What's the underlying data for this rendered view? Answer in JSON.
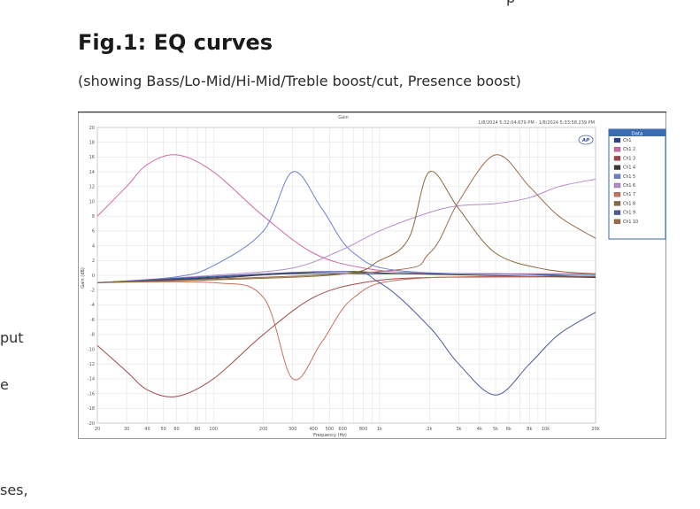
{
  "page": {
    "top_fragment": "p",
    "left_fragments": [
      "put",
      "e",
      "ses,"
    ],
    "figure_title": "Fig.1: EQ curves",
    "figure_caption": "(showing Bass/Lo-Mid/Hi-Mid/Treble boost/cut, Presence boost)"
  },
  "chart_data": {
    "type": "line",
    "title": "Gain",
    "timestamp": "1/8/2024 5:32:04.679 PM - 1/8/2024 5:33:58.239 PM",
    "logo": "AP",
    "xlabel": "Frequency (Hz)",
    "ylabel": "Gain (dB)",
    "xscale": "log",
    "xlim": [
      20,
      20000
    ],
    "ylim": [
      -20,
      20
    ],
    "grid": true,
    "legend_title": "Data",
    "legend_position": "top-right",
    "x_ticks": [
      {
        "v": 20,
        "l": "20"
      },
      {
        "v": 30,
        "l": "30"
      },
      {
        "v": 40,
        "l": "40"
      },
      {
        "v": 50,
        "l": "50"
      },
      {
        "v": 60,
        "l": "60"
      },
      {
        "v": 80,
        "l": "80"
      },
      {
        "v": 100,
        "l": "100"
      },
      {
        "v": 200,
        "l": "200"
      },
      {
        "v": 300,
        "l": "300"
      },
      {
        "v": 400,
        "l": "400"
      },
      {
        "v": 500,
        "l": "500"
      },
      {
        "v": 600,
        "l": "600"
      },
      {
        "v": 800,
        "l": "800"
      },
      {
        "v": 1000,
        "l": "1k"
      },
      {
        "v": 2000,
        "l": "2k"
      },
      {
        "v": 3000,
        "l": "3k"
      },
      {
        "v": 4000,
        "l": "4k"
      },
      {
        "v": 5000,
        "l": "5k"
      },
      {
        "v": 6000,
        "l": "6k"
      },
      {
        "v": 8000,
        "l": "8k"
      },
      {
        "v": 10000,
        "l": "10k"
      },
      {
        "v": 20000,
        "l": "20k"
      }
    ],
    "y_ticks": [
      20,
      18,
      16,
      14,
      12,
      10,
      8,
      6,
      4,
      2,
      0,
      -2,
      -4,
      -6,
      -8,
      -10,
      -12,
      -14,
      -16,
      -18,
      -20
    ],
    "series": [
      {
        "name": "Ch1",
        "color": "#2c3f8c",
        "points": [
          [
            20,
            -1.0
          ],
          [
            60,
            -0.5
          ],
          [
            300,
            0.2
          ],
          [
            1000,
            0.2
          ],
          [
            5000,
            0.2
          ],
          [
            20000,
            -0.2
          ]
        ]
      },
      {
        "name": "Ch1 2",
        "color": "#cc6aa8",
        "points": [
          [
            20,
            8
          ],
          [
            30,
            12
          ],
          [
            40,
            15
          ],
          [
            60,
            16.3
          ],
          [
            100,
            14
          ],
          [
            200,
            8
          ],
          [
            400,
            3
          ],
          [
            800,
            1
          ],
          [
            2000,
            0.3
          ],
          [
            20000,
            0.2
          ]
        ]
      },
      {
        "name": "Ch1 3",
        "color": "#a04848",
        "points": [
          [
            20,
            -9.5
          ],
          [
            30,
            -13
          ],
          [
            40,
            -15.5
          ],
          [
            60,
            -16.4
          ],
          [
            100,
            -14
          ],
          [
            200,
            -8
          ],
          [
            400,
            -3
          ],
          [
            800,
            -1
          ],
          [
            2000,
            -0.3
          ],
          [
            20000,
            -0.2
          ]
        ]
      },
      {
        "name": "Ch1 4",
        "color": "#3a3a3a",
        "points": [
          [
            20,
            -1
          ],
          [
            100,
            -0.4
          ],
          [
            300,
            0.3
          ],
          [
            700,
            0.5
          ],
          [
            1500,
            0.2
          ],
          [
            20000,
            -0.3
          ]
        ]
      },
      {
        "name": "Ch1 5",
        "color": "#6a7fd0",
        "points": [
          [
            20,
            -1
          ],
          [
            60,
            -0.2
          ],
          [
            100,
            1.3
          ],
          [
            200,
            6
          ],
          [
            300,
            14
          ],
          [
            450,
            9
          ],
          [
            700,
            3
          ],
          [
            1500,
            0.5
          ],
          [
            20000,
            0.1
          ]
        ]
      },
      {
        "name": "Ch1 6",
        "color": "#b58bc9",
        "points": [
          [
            20,
            -1
          ],
          [
            100,
            0
          ],
          [
            300,
            1
          ],
          [
            600,
            3.5
          ],
          [
            1000,
            6
          ],
          [
            2000,
            8.5
          ],
          [
            3000,
            9.4
          ],
          [
            5000,
            9.7
          ],
          [
            8000,
            10.5
          ],
          [
            12000,
            12
          ],
          [
            20000,
            13
          ]
        ]
      },
      {
        "name": "Ch1 7",
        "color": "#c8705a",
        "points": [
          [
            20,
            -1
          ],
          [
            100,
            -1
          ],
          [
            200,
            -3
          ],
          [
            300,
            -14
          ],
          [
            450,
            -9
          ],
          [
            700,
            -3
          ],
          [
            1500,
            -0.5
          ],
          [
            20000,
            -0.1
          ]
        ]
      },
      {
        "name": "Ch1 8",
        "color": "#8a6a3a",
        "points": [
          [
            20,
            -1
          ],
          [
            500,
            0
          ],
          [
            1000,
            2
          ],
          [
            1500,
            5
          ],
          [
            2000,
            14
          ],
          [
            3000,
            9
          ],
          [
            5000,
            3
          ],
          [
            10000,
            0.8
          ],
          [
            20000,
            0.2
          ]
        ]
      },
      {
        "name": "Ch1 9",
        "color": "#4a5a9c",
        "points": [
          [
            20,
            -1
          ],
          [
            500,
            0.5
          ],
          [
            1000,
            -1
          ],
          [
            2000,
            -7
          ],
          [
            3000,
            -12
          ],
          [
            5000,
            -16.2
          ],
          [
            8000,
            -12
          ],
          [
            12000,
            -8
          ],
          [
            20000,
            -5
          ]
        ]
      },
      {
        "name": "Ch1 10",
        "color": "#9c6a4a",
        "points": [
          [
            20,
            -1
          ],
          [
            1000,
            0.5
          ],
          [
            2000,
            3
          ],
          [
            3000,
            10
          ],
          [
            5000,
            16.3
          ],
          [
            8000,
            12
          ],
          [
            12000,
            8
          ],
          [
            20000,
            5
          ]
        ]
      }
    ]
  }
}
